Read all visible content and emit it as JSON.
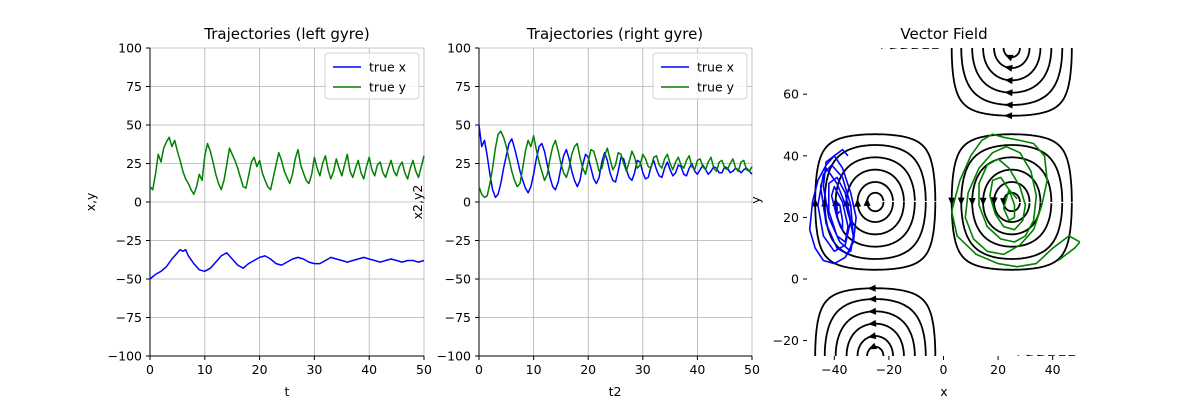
{
  "chart_data": [
    {
      "type": "line",
      "title": "Trajectories (left gyre)",
      "xlabel": "t",
      "ylabel": "x,y",
      "xlim": [
        0,
        50
      ],
      "ylim": [
        -100,
        100
      ],
      "xticks": [
        "0",
        "10",
        "20",
        "30",
        "40",
        "50"
      ],
      "yticks": [
        "100",
        "75",
        "50",
        "25",
        "0",
        "−25",
        "−50",
        "−75",
        "−100"
      ],
      "grid": true,
      "legend": "top-right",
      "series": [
        {
          "name": "true x",
          "color": "#0000ff",
          "x": [
            0,
            1,
            2,
            3,
            4,
            5,
            5.5,
            6,
            6.5,
            7,
            8,
            9,
            10,
            11,
            12,
            13,
            14,
            15,
            16,
            17,
            18,
            19,
            20,
            21,
            22,
            23,
            24,
            25,
            26,
            27,
            28,
            29,
            30,
            31,
            32,
            33,
            34,
            35,
            36,
            37,
            38,
            39,
            40,
            41,
            42,
            43,
            44,
            45,
            46,
            47,
            48,
            49,
            50
          ],
          "y": [
            -50,
            -47,
            -45,
            -42,
            -37,
            -33,
            -31,
            -32,
            -31,
            -35,
            -40,
            -44,
            -45,
            -43,
            -39,
            -35,
            -33,
            -37,
            -41,
            -43,
            -40,
            -38,
            -36,
            -35,
            -37,
            -40,
            -41,
            -39,
            -37,
            -36,
            -37,
            -39,
            -40,
            -40,
            -38,
            -36,
            -37,
            -38,
            -39,
            -38,
            -37,
            -36,
            -37,
            -38,
            -39,
            -38,
            -37,
            -38,
            -39,
            -38,
            -38,
            -39,
            -38
          ]
        },
        {
          "name": "true y",
          "color": "#008000",
          "x": [
            0,
            0.5,
            1,
            1.5,
            2,
            2.5,
            3,
            3.5,
            4,
            4.5,
            5,
            5.5,
            6,
            6.5,
            7,
            7.5,
            8,
            8.5,
            9,
            9.5,
            10,
            10.5,
            11,
            11.5,
            12,
            12.5,
            13,
            13.5,
            14,
            14.5,
            15,
            15.5,
            16,
            16.5,
            17,
            17.5,
            18,
            18.5,
            19,
            19.5,
            20,
            20.5,
            21,
            21.5,
            22,
            22.5,
            23,
            23.5,
            24,
            24.5,
            25,
            25.5,
            26,
            26.5,
            27,
            27.5,
            28,
            28.5,
            29,
            29.5,
            30,
            30.5,
            31,
            31.5,
            32,
            32.5,
            33,
            33.5,
            34,
            34.5,
            35,
            35.5,
            36,
            36.5,
            37,
            37.5,
            38,
            38.5,
            39,
            39.5,
            40,
            40.5,
            41,
            41.5,
            42,
            42.5,
            43,
            43.5,
            44,
            44.5,
            45,
            45.5,
            46,
            46.5,
            47,
            47.5,
            48,
            48.5,
            49,
            49.5,
            50
          ],
          "y": [
            10,
            8,
            18,
            31,
            26,
            35,
            39,
            42,
            36,
            40,
            33,
            27,
            20,
            15,
            12,
            8,
            5,
            10,
            18,
            14,
            30,
            38,
            33,
            26,
            18,
            12,
            8,
            14,
            24,
            35,
            31,
            27,
            22,
            16,
            10,
            9,
            17,
            26,
            29,
            23,
            27,
            19,
            14,
            10,
            8,
            16,
            24,
            32,
            27,
            20,
            16,
            12,
            18,
            28,
            34,
            24,
            19,
            14,
            12,
            18,
            29,
            22,
            17,
            25,
            30,
            21,
            15,
            20,
            28,
            22,
            17,
            24,
            31,
            20,
            16,
            22,
            27,
            19,
            15,
            23,
            29,
            21,
            17,
            24,
            26,
            19,
            16,
            22,
            27,
            20,
            17,
            23,
            26,
            19,
            15,
            22,
            27,
            20,
            16,
            23,
            30
          ]
        }
      ]
    },
    {
      "type": "line",
      "title": "Trajectories (right gyre)",
      "xlabel": "t2",
      "ylabel": "x2,y2",
      "xlim": [
        0,
        50
      ],
      "ylim": [
        -100,
        100
      ],
      "xticks": [
        "0",
        "10",
        "20",
        "30",
        "40",
        "50"
      ],
      "yticks": [
        "100",
        "75",
        "50",
        "25",
        "0",
        "−25",
        "−50",
        "−75",
        "−100"
      ],
      "grid": true,
      "legend": "top-right",
      "series": [
        {
          "name": "true x",
          "color": "#0000ff",
          "x": [
            0,
            0.5,
            1,
            1.5,
            2,
            2.5,
            3,
            3.5,
            4,
            4.5,
            5,
            5.5,
            6,
            6.5,
            7,
            7.5,
            8,
            8.5,
            9,
            9.5,
            10,
            10.5,
            11,
            11.5,
            12,
            12.5,
            13,
            13.5,
            14,
            14.5,
            15,
            15.5,
            16,
            16.5,
            17,
            17.5,
            18,
            18.5,
            19,
            19.5,
            20,
            20.5,
            21,
            21.5,
            22,
            22.5,
            23,
            23.5,
            24,
            24.5,
            25,
            25.5,
            26,
            26.5,
            27,
            27.5,
            28,
            28.5,
            29,
            29.5,
            30,
            30.5,
            31,
            31.5,
            32,
            32.5,
            33,
            33.5,
            34,
            34.5,
            35,
            35.5,
            36,
            36.5,
            37,
            37.5,
            38,
            38.5,
            39,
            39.5,
            40,
            40.5,
            41,
            41.5,
            42,
            42.5,
            43,
            43.5,
            44,
            44.5,
            45,
            45.5,
            46,
            46.5,
            47,
            47.5,
            48,
            48.5,
            49,
            49.5,
            50
          ],
          "y": [
            50,
            36,
            40,
            30,
            18,
            8,
            3,
            5,
            12,
            22,
            30,
            38,
            41,
            35,
            28,
            20,
            14,
            9,
            6,
            10,
            18,
            28,
            36,
            38,
            33,
            24,
            16,
            10,
            8,
            13,
            22,
            30,
            34,
            28,
            20,
            14,
            10,
            14,
            24,
            31,
            29,
            22,
            15,
            12,
            16,
            26,
            32,
            27,
            19,
            14,
            13,
            20,
            29,
            28,
            21,
            16,
            14,
            19,
            27,
            26,
            19,
            15,
            16,
            23,
            27,
            21,
            17,
            16,
            22,
            26,
            21,
            17,
            19,
            24,
            23,
            18,
            17,
            22,
            25,
            20,
            18,
            21,
            24,
            21,
            18,
            20,
            23,
            22,
            19,
            19,
            23,
            22,
            19,
            20,
            22,
            21,
            19,
            21,
            22,
            20,
            18
          ]
        },
        {
          "name": "true y",
          "color": "#008000",
          "x": [
            0,
            0.5,
            1,
            1.5,
            2,
            2.5,
            3,
            3.5,
            4,
            4.5,
            5,
            5.5,
            6,
            6.5,
            7,
            7.5,
            8,
            8.5,
            9,
            9.5,
            10,
            10.5,
            11,
            11.5,
            12,
            12.5,
            13,
            13.5,
            14,
            14.5,
            15,
            15.5,
            16,
            16.5,
            17,
            17.5,
            18,
            18.5,
            19,
            19.5,
            20,
            20.5,
            21,
            21.5,
            22,
            22.5,
            23,
            23.5,
            24,
            24.5,
            25,
            25.5,
            26,
            26.5,
            27,
            27.5,
            28,
            28.5,
            29,
            29.5,
            30,
            30.5,
            31,
            31.5,
            32,
            32.5,
            33,
            33.5,
            34,
            34.5,
            35,
            35.5,
            36,
            36.5,
            37,
            37.5,
            38,
            38.5,
            39,
            39.5,
            40,
            40.5,
            41,
            41.5,
            42,
            42.5,
            43,
            43.5,
            44,
            44.5,
            45,
            45.5,
            46,
            46.5,
            47,
            47.5,
            48,
            48.5,
            49,
            49.5,
            50
          ],
          "y": [
            10,
            5,
            3,
            4,
            12,
            22,
            35,
            44,
            46,
            42,
            36,
            28,
            20,
            14,
            10,
            12,
            22,
            33,
            40,
            36,
            43,
            34,
            26,
            20,
            14,
            18,
            28,
            36,
            40,
            33,
            25,
            19,
            16,
            22,
            31,
            36,
            38,
            29,
            22,
            18,
            26,
            34,
            33,
            27,
            20,
            22,
            30,
            35,
            28,
            21,
            24,
            32,
            31,
            25,
            20,
            26,
            33,
            29,
            22,
            24,
            31,
            28,
            23,
            22,
            29,
            30,
            24,
            22,
            28,
            31,
            25,
            21,
            26,
            29,
            24,
            22,
            27,
            30,
            23,
            21,
            27,
            28,
            23,
            21,
            26,
            29,
            22,
            20,
            26,
            27,
            22,
            21,
            25,
            28,
            22,
            20,
            26,
            27,
            21,
            20,
            23
          ]
        }
      ]
    },
    {
      "type": "streamplot",
      "title": "Vector Field",
      "xlabel": "x",
      "ylabel": "y",
      "xlim": [
        -50,
        50
      ],
      "ylim": [
        -25,
        75
      ],
      "xticks": [
        "−40",
        "−20",
        "0",
        "20",
        "40"
      ],
      "yticks": [
        "60",
        "40",
        "20",
        "0",
        "−20"
      ],
      "grid": false,
      "stream_color": "#000000",
      "series": [
        {
          "name": "",
          "color": "#0000ff",
          "x": [
            -35,
            -37,
            -40,
            -43,
            -46,
            -48,
            -49,
            -47,
            -44,
            -40,
            -36,
            -33,
            -32,
            -34,
            -37,
            -40,
            -43,
            -44,
            -42,
            -38,
            -34,
            -33,
            -35,
            -39,
            -43,
            -45,
            -43,
            -39,
            -35,
            -33,
            -34,
            -37,
            -41,
            -44,
            -46,
            -44,
            -40,
            -36,
            -34,
            -36,
            -39,
            -42,
            -42,
            -39,
            -36,
            -35,
            -37,
            -40,
            -41,
            -39,
            -37,
            -37,
            -38,
            -39,
            -39,
            -38
          ],
          "y": [
            40,
            42,
            40,
            37,
            32,
            25,
            16,
            10,
            6,
            5,
            7,
            12,
            20,
            28,
            36,
            40,
            38,
            30,
            20,
            12,
            9,
            14,
            22,
            31,
            36,
            30,
            18,
            10,
            8,
            13,
            24,
            33,
            37,
            34,
            24,
            14,
            9,
            11,
            19,
            28,
            33,
            31,
            22,
            14,
            12,
            17,
            25,
            30,
            27,
            20,
            16,
            19,
            24,
            25,
            21,
            22
          ]
        },
        {
          "name": "",
          "color": "#008000",
          "x": [
            42,
            45,
            48,
            50,
            46,
            40,
            34,
            27,
            20,
            12,
            5,
            3,
            6,
            10,
            14,
            18,
            22,
            28,
            33,
            37,
            38,
            36,
            33,
            28,
            22,
            16,
            11,
            8,
            9,
            13,
            18,
            23,
            28,
            32,
            34,
            33,
            30,
            26,
            21,
            16,
            13,
            13,
            16,
            20,
            24,
            28,
            30,
            29,
            26,
            22,
            19,
            17,
            18,
            21,
            24,
            26,
            26,
            24,
            22,
            24,
            27
          ],
          "y": [
            6,
            8,
            10,
            12,
            14,
            10,
            5,
            4,
            5,
            8,
            14,
            22,
            32,
            40,
            45,
            47,
            46,
            45,
            44,
            40,
            32,
            24,
            16,
            11,
            8,
            9,
            13,
            20,
            28,
            36,
            41,
            43,
            41,
            35,
            27,
            19,
            14,
            12,
            13,
            17,
            24,
            31,
            37,
            39,
            36,
            30,
            24,
            19,
            16,
            17,
            21,
            27,
            32,
            33,
            29,
            24,
            20,
            19,
            23,
            29,
            26
          ]
        }
      ]
    }
  ]
}
